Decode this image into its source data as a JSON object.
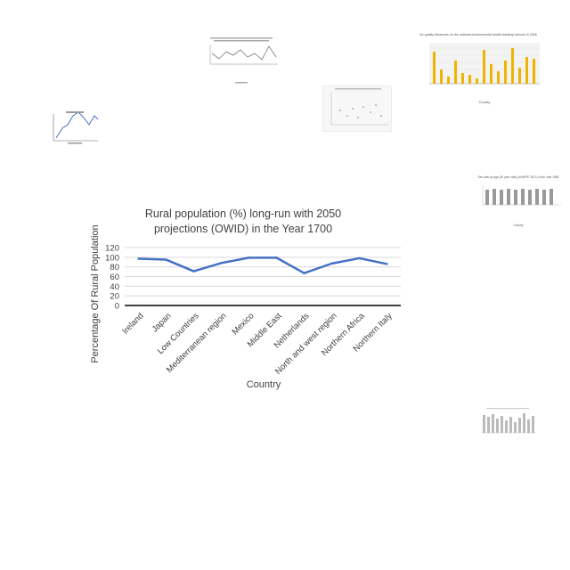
{
  "chart_data": {
    "type": "line",
    "title": "Rural population (%) long-run with 2050 projections (OWID) in the Year 1700",
    "title_lines": [
      "Rural population (%) long-run with 2050",
      "projections (OWID) in the Year 1700"
    ],
    "xlabel": "Country",
    "ylabel": "Percentage Of Rural  Population",
    "categories": [
      "Ireland",
      "Japan",
      "Low Countries",
      "Mediterranean region",
      "Mexico",
      "Middle East",
      "Netherlands",
      "North and west region",
      "Northern Africa",
      "Northern Italy"
    ],
    "series": [
      {
        "values": [
          97,
          95,
          71,
          88,
          99,
          99,
          67,
          87,
          98,
          86
        ]
      }
    ],
    "ylim": [
      0,
      120
    ],
    "yticks": [
      0,
      20,
      40,
      60,
      80,
      100,
      120
    ],
    "grid": true,
    "line_color": "#4472c4"
  },
  "thumbnails": {
    "air_quality": {
      "title": "Air quality Measures on the national environmental health tracking network in 2006",
      "xlabel": "County"
    },
    "sex_ratio": {
      "title": "Sex ratio by age (20 year olds) (UNWPP, 2017) in the Year 1960",
      "xlabel": "Country"
    }
  }
}
